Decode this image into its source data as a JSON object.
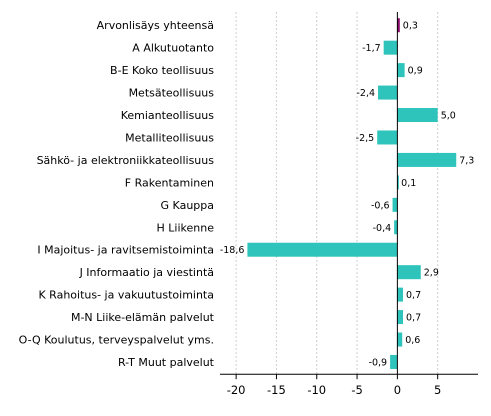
{
  "chart_data": {
    "type": "bar",
    "orientation": "horizontal",
    "title": "",
    "xlabel": "",
    "ylabel": "",
    "xlim": [
      -22,
      10
    ],
    "xticks": [
      -20,
      -15,
      -10,
      -5,
      0,
      5
    ],
    "grid": true,
    "legend": "none",
    "categories": [
      "Arvonlisäys yhteensä",
      "A Alkutuotanto",
      "B-E Koko teollisuus",
      "Metsäteollisuus",
      "Kemianteollisuus",
      "Metalliteollisuus",
      "Sähkö- ja elektroniikkateollisuus",
      "F Rakentaminen",
      "G Kauppa",
      "H Liikenne",
      "I Majoitus- ja ravitsemistoiminta",
      "J Informaatio ja viestintä",
      "K Rahoitus- ja vakuutustoiminta",
      "M-N Liike-elämän palvelut",
      "O-Q Koulutus, terveyspalvelut yms.",
      "R-T Muut palvelut"
    ],
    "values": [
      0.3,
      -1.7,
      0.9,
      -2.4,
      5.0,
      -2.5,
      7.3,
      0.1,
      -0.6,
      -0.4,
      -18.6,
      2.9,
      0.7,
      0.7,
      0.6,
      -0.9
    ],
    "value_labels": [
      "0,3",
      "-1,7",
      "0,9",
      "-2,4",
      "5,0",
      "-2,5",
      "7,3",
      "0,1",
      "-0,6",
      "-0,4",
      "-18,6",
      "2,9",
      "0,7",
      "0,7",
      "0,6",
      "-0,9"
    ],
    "tick_labels": [
      "-20",
      "-15",
      "-10",
      "-5",
      "0",
      "5"
    ],
    "colors": {
      "highlight": "#8b0a6e",
      "bar": "#2ec4bc"
    },
    "highlight_index": 0
  }
}
